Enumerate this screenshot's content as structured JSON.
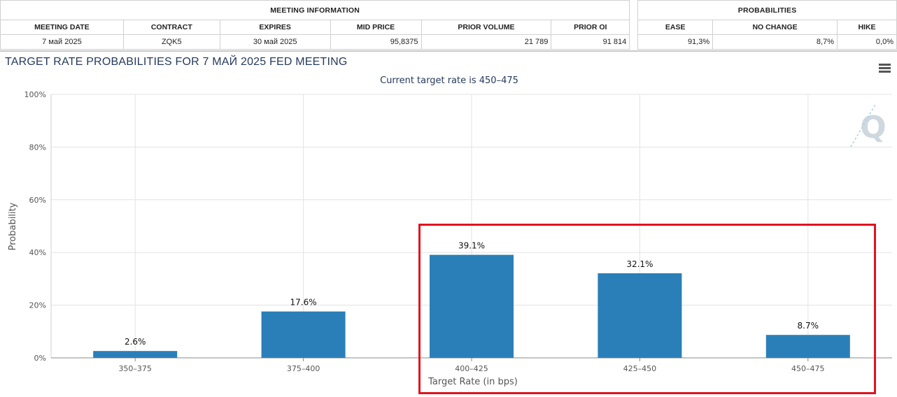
{
  "table": {
    "group_meeting": "MEETING INFORMATION",
    "group_prob": "PROBABILITIES",
    "headers": {
      "meeting_date": "MEETING DATE",
      "contract": "CONTRACT",
      "expires": "EXPIRES",
      "mid_price": "MID PRICE",
      "prior_volume": "PRIOR VOLUME",
      "prior_oi": "PRIOR OI",
      "ease": "EASE",
      "no_change": "NO CHANGE",
      "hike": "HIKE"
    },
    "row": {
      "meeting_date": "7 май 2025",
      "contract": "ZQK5",
      "expires": "30 май 2025",
      "mid_price": "95,8375",
      "prior_volume": "21 789",
      "prior_oi": "91 814",
      "ease": "91,3%",
      "no_change": "8,7%",
      "hike": "0,0%"
    }
  },
  "chart_data": {
    "type": "bar",
    "title": "TARGET RATE PROBABILITIES FOR 7 МАЙ 2025 FED MEETING",
    "subtitle": "Current target rate is 450–475",
    "categories": [
      "350–375",
      "375–400",
      "400–425",
      "425–450",
      "450–475"
    ],
    "values": [
      2.6,
      17.6,
      39.1,
      32.1,
      8.7
    ],
    "data_labels": [
      "2.6%",
      "17.6%",
      "39.1%",
      "32.1%",
      "8.7%"
    ],
    "xlabel": "Target Rate (in bps)",
    "ylabel": "Probability",
    "ylim": [
      0,
      100
    ],
    "yticks": [
      "0%",
      "20%",
      "40%",
      "60%",
      "80%",
      "100%"
    ],
    "ytick_values": [
      0,
      20,
      40,
      60,
      80,
      100
    ],
    "bar_color": "#2a7fb8",
    "grid": true,
    "highlight_color": "#e0141f",
    "watermark": "Q"
  }
}
